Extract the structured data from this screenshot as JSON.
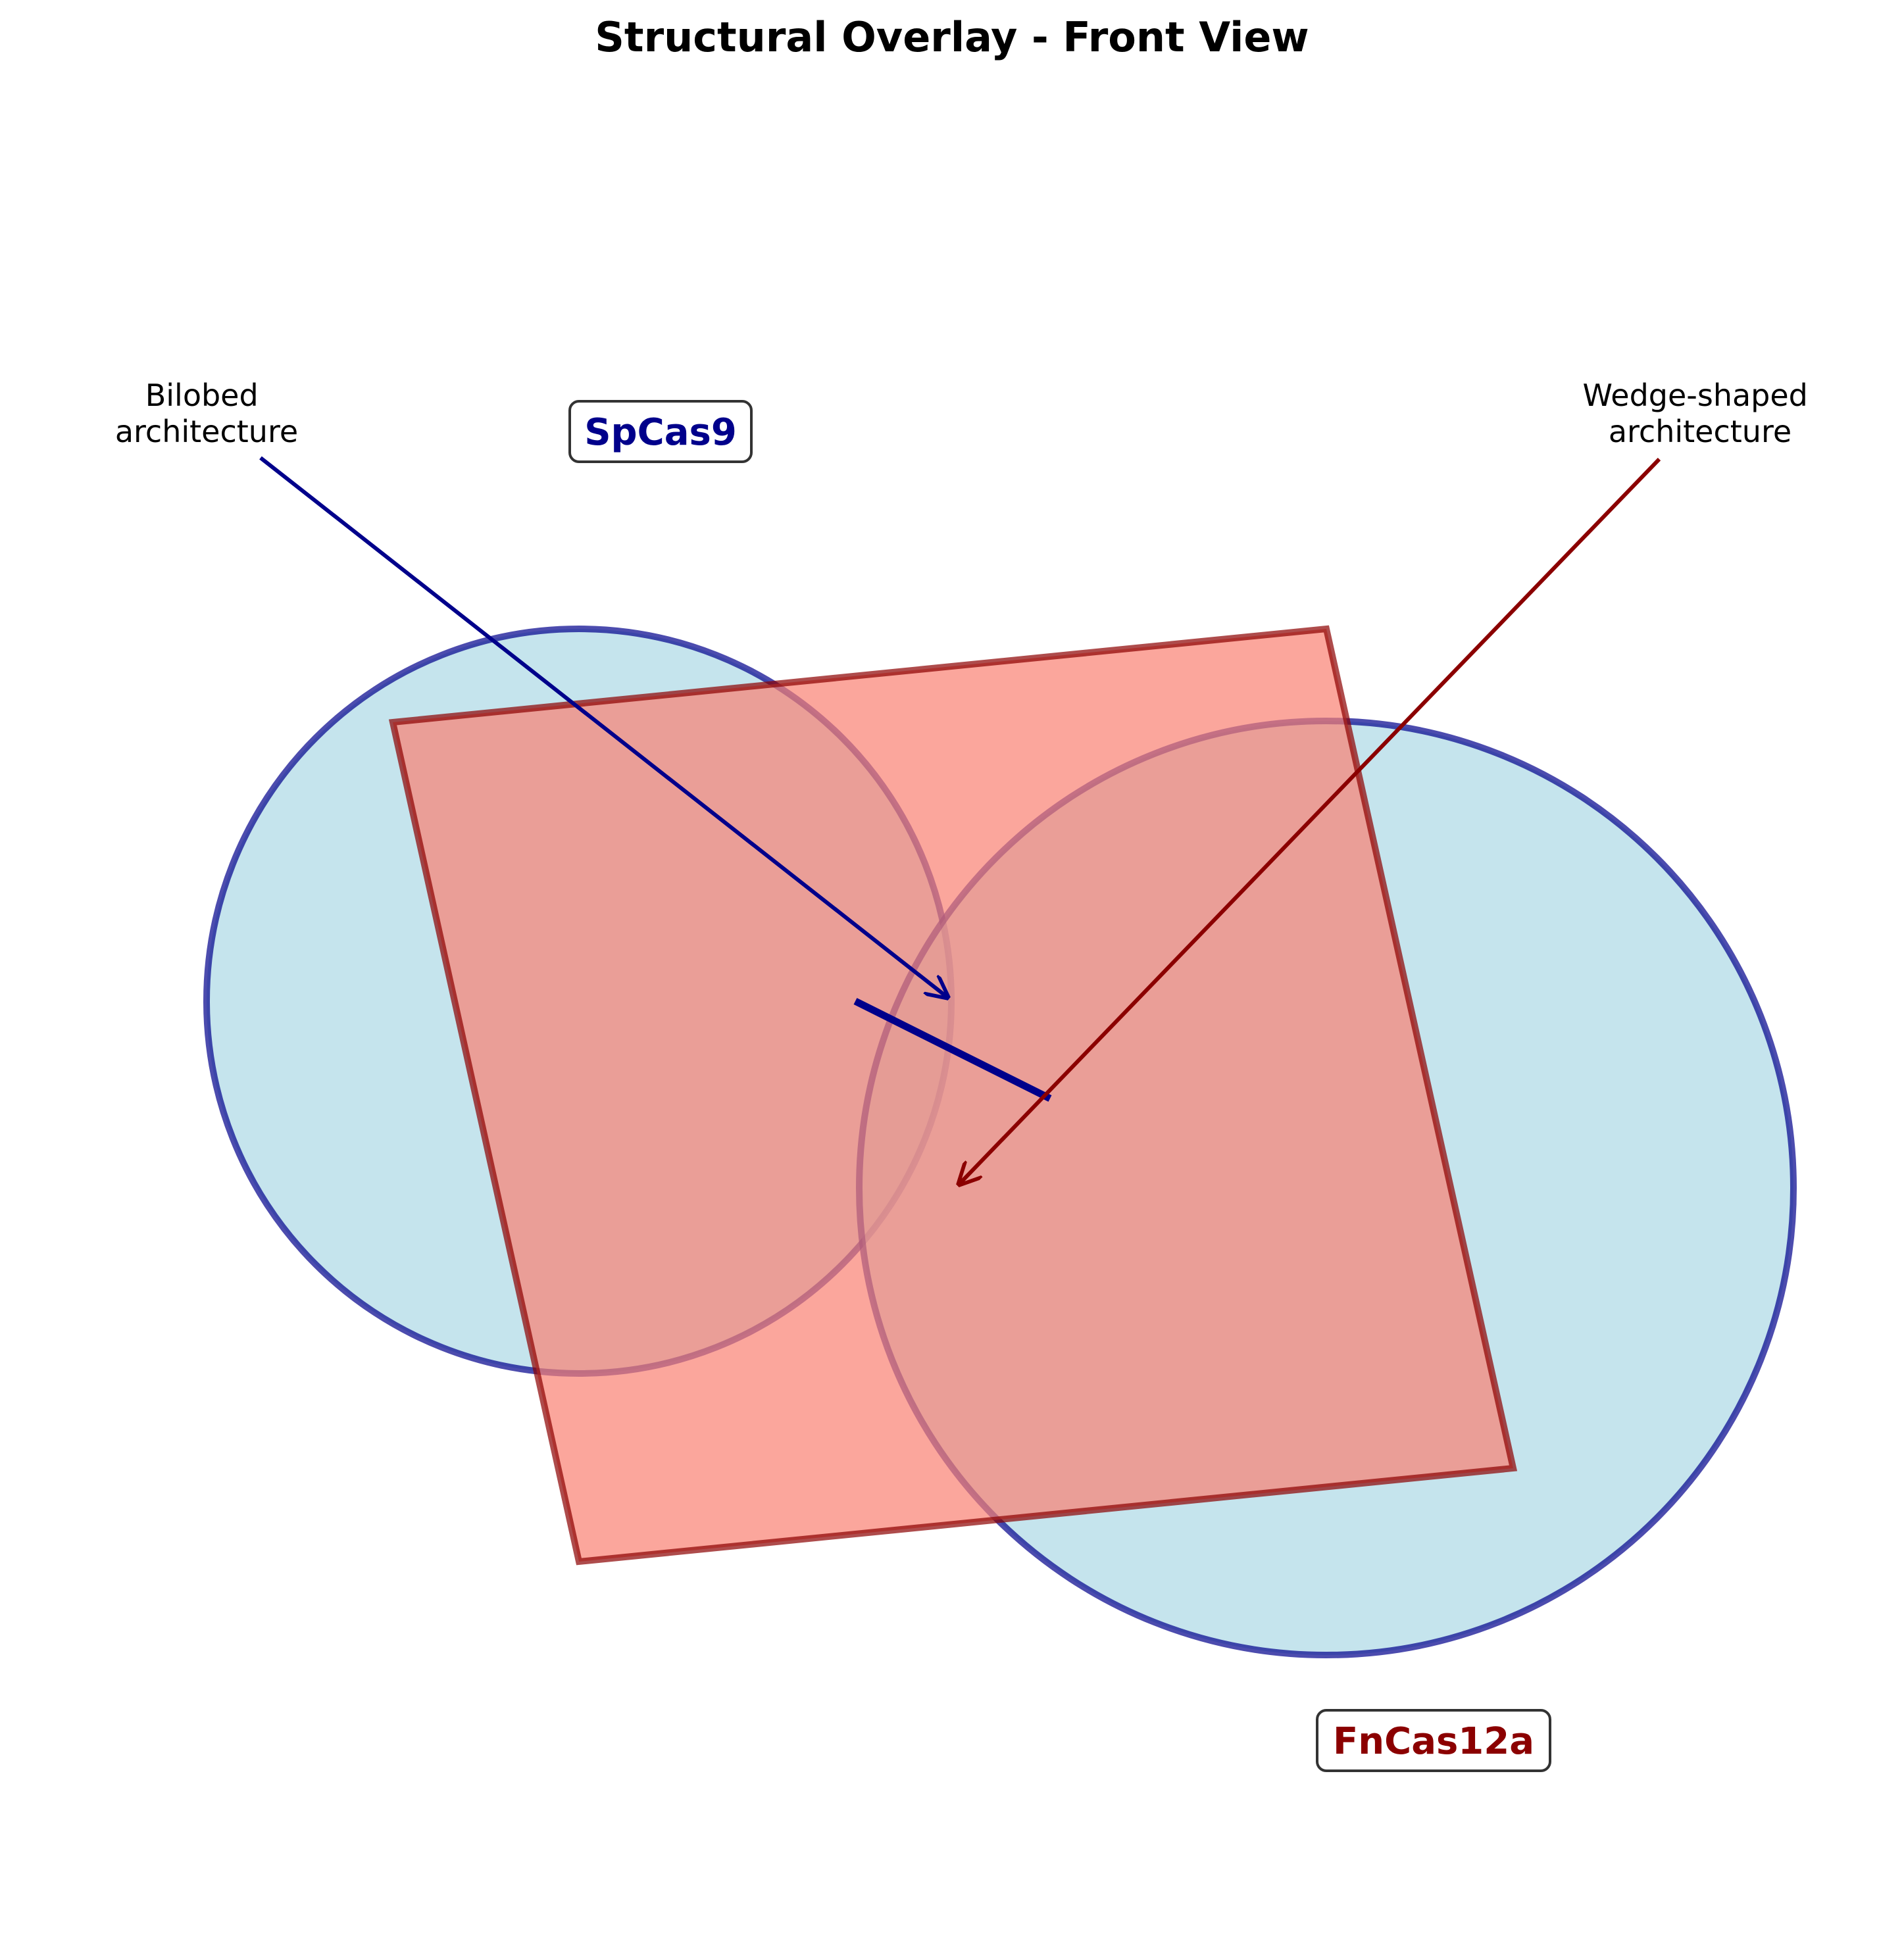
{
  "figure": {
    "title": "Structural Overlay - Front View"
  },
  "labels": {
    "spcas9": "SpCas9",
    "fncas12a": "FnCas12a"
  },
  "annotations": {
    "bilobed": {
      "line1": "Bilobed",
      "line2": "architecture"
    },
    "wedge": {
      "line1": "Wedge-shaped",
      "line2": "architecture"
    }
  },
  "colors": {
    "lobe_fill": "#add8e6",
    "lobe_stroke": "#00008b",
    "wedge_fill": "#fa8072",
    "wedge_stroke": "#8b0000",
    "spcas9_label": "#00008b",
    "fncas12a_label": "#8b0000",
    "bilobed_arrow": "#00008b",
    "wedge_arrow": "#8b0000",
    "label_box_stroke": "#333333"
  }
}
